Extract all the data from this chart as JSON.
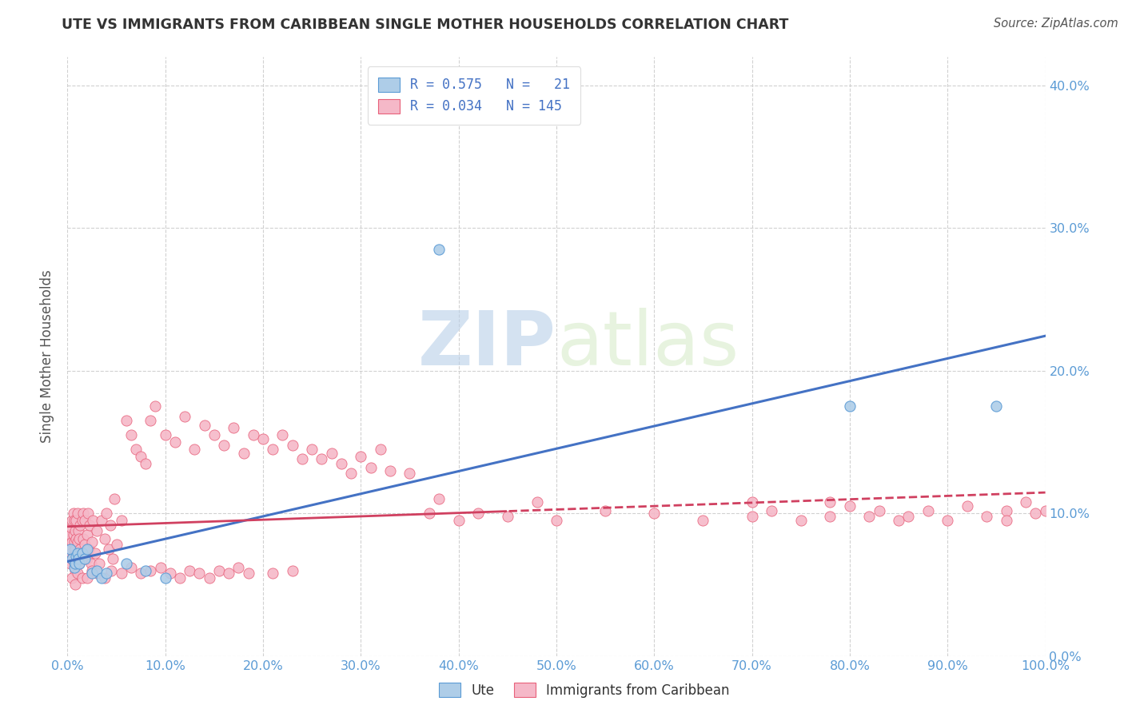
{
  "title": "UTE VS IMMIGRANTS FROM CARIBBEAN SINGLE MOTHER HOUSEHOLDS CORRELATION CHART",
  "source": "Source: ZipAtlas.com",
  "ylabel": "Single Mother Households",
  "xlim": [
    0,
    1.0
  ],
  "ylim": [
    0,
    0.42
  ],
  "xticks": [
    0.0,
    0.1,
    0.2,
    0.3,
    0.4,
    0.5,
    0.6,
    0.7,
    0.8,
    0.9,
    1.0
  ],
  "yticks": [
    0.0,
    0.1,
    0.2,
    0.3,
    0.4
  ],
  "ute_R": 0.575,
  "ute_N": 21,
  "carib_R": 0.034,
  "carib_N": 145,
  "ute_color": "#aecde8",
  "ute_edge_color": "#5b9bd5",
  "carib_color": "#f5b8c8",
  "carib_edge_color": "#e8607a",
  "ute_line_color": "#4472c4",
  "carib_line_color": "#d04060",
  "watermark_color": "#d0e4f5",
  "background_color": "#ffffff",
  "grid_color": "#cccccc",
  "tick_color": "#5b9bd5",
  "legend_label_ute": "Ute",
  "legend_label_carib": "Immigrants from Caribbean",
  "ute_x": [
    0.003,
    0.005,
    0.007,
    0.008,
    0.009,
    0.01,
    0.011,
    0.012,
    0.015,
    0.018,
    0.02,
    0.025,
    0.03,
    0.035,
    0.04,
    0.06,
    0.08,
    0.1,
    0.38,
    0.8,
    0.95
  ],
  "ute_y": [
    0.075,
    0.068,
    0.062,
    0.065,
    0.07,
    0.072,
    0.068,
    0.065,
    0.072,
    0.068,
    0.075,
    0.058,
    0.06,
    0.055,
    0.058,
    0.065,
    0.06,
    0.055,
    0.285,
    0.175,
    0.175
  ],
  "carib_x": [
    0.002,
    0.003,
    0.003,
    0.004,
    0.004,
    0.005,
    0.005,
    0.005,
    0.006,
    0.006,
    0.006,
    0.007,
    0.007,
    0.007,
    0.008,
    0.008,
    0.008,
    0.009,
    0.009,
    0.009,
    0.01,
    0.01,
    0.01,
    0.011,
    0.011,
    0.012,
    0.012,
    0.013,
    0.013,
    0.014,
    0.015,
    0.015,
    0.016,
    0.016,
    0.017,
    0.018,
    0.018,
    0.019,
    0.02,
    0.02,
    0.021,
    0.022,
    0.023,
    0.024,
    0.025,
    0.026,
    0.028,
    0.03,
    0.032,
    0.035,
    0.038,
    0.04,
    0.042,
    0.044,
    0.046,
    0.048,
    0.05,
    0.055,
    0.06,
    0.065,
    0.07,
    0.075,
    0.08,
    0.085,
    0.09,
    0.1,
    0.11,
    0.12,
    0.13,
    0.14,
    0.15,
    0.16,
    0.17,
    0.18,
    0.19,
    0.2,
    0.21,
    0.22,
    0.23,
    0.24,
    0.25,
    0.26,
    0.27,
    0.28,
    0.29,
    0.3,
    0.31,
    0.32,
    0.33,
    0.35,
    0.37,
    0.38,
    0.4,
    0.42,
    0.45,
    0.48,
    0.5,
    0.55,
    0.6,
    0.65,
    0.7,
    0.7,
    0.72,
    0.75,
    0.78,
    0.78,
    0.8,
    0.82,
    0.83,
    0.85,
    0.86,
    0.88,
    0.9,
    0.92,
    0.94,
    0.96,
    0.96,
    0.98,
    0.99,
    1.0,
    0.005,
    0.008,
    0.01,
    0.015,
    0.02,
    0.025,
    0.03,
    0.038,
    0.045,
    0.055,
    0.065,
    0.075,
    0.085,
    0.095,
    0.105,
    0.115,
    0.125,
    0.135,
    0.145,
    0.155,
    0.165,
    0.175,
    0.185,
    0.21,
    0.23
  ],
  "carib_y": [
    0.075,
    0.065,
    0.085,
    0.072,
    0.09,
    0.068,
    0.08,
    0.095,
    0.07,
    0.085,
    0.1,
    0.065,
    0.08,
    0.095,
    0.06,
    0.075,
    0.088,
    0.065,
    0.082,
    0.095,
    0.068,
    0.08,
    0.1,
    0.072,
    0.088,
    0.065,
    0.082,
    0.075,
    0.092,
    0.068,
    0.072,
    0.095,
    0.082,
    0.1,
    0.068,
    0.078,
    0.095,
    0.072,
    0.068,
    0.085,
    0.1,
    0.075,
    0.092,
    0.065,
    0.08,
    0.095,
    0.072,
    0.088,
    0.065,
    0.095,
    0.082,
    0.1,
    0.075,
    0.092,
    0.068,
    0.11,
    0.078,
    0.095,
    0.165,
    0.155,
    0.145,
    0.14,
    0.135,
    0.165,
    0.175,
    0.155,
    0.15,
    0.168,
    0.145,
    0.162,
    0.155,
    0.148,
    0.16,
    0.142,
    0.155,
    0.152,
    0.145,
    0.155,
    0.148,
    0.138,
    0.145,
    0.138,
    0.142,
    0.135,
    0.128,
    0.14,
    0.132,
    0.145,
    0.13,
    0.128,
    0.1,
    0.11,
    0.095,
    0.1,
    0.098,
    0.108,
    0.095,
    0.102,
    0.1,
    0.095,
    0.108,
    0.098,
    0.102,
    0.095,
    0.108,
    0.098,
    0.105,
    0.098,
    0.102,
    0.095,
    0.098,
    0.102,
    0.095,
    0.105,
    0.098,
    0.102,
    0.095,
    0.108,
    0.1,
    0.102,
    0.055,
    0.05,
    0.058,
    0.055,
    0.055,
    0.06,
    0.058,
    0.055,
    0.06,
    0.058,
    0.062,
    0.058,
    0.06,
    0.062,
    0.058,
    0.055,
    0.06,
    0.058,
    0.055,
    0.06,
    0.058,
    0.062,
    0.058,
    0.058,
    0.06
  ]
}
